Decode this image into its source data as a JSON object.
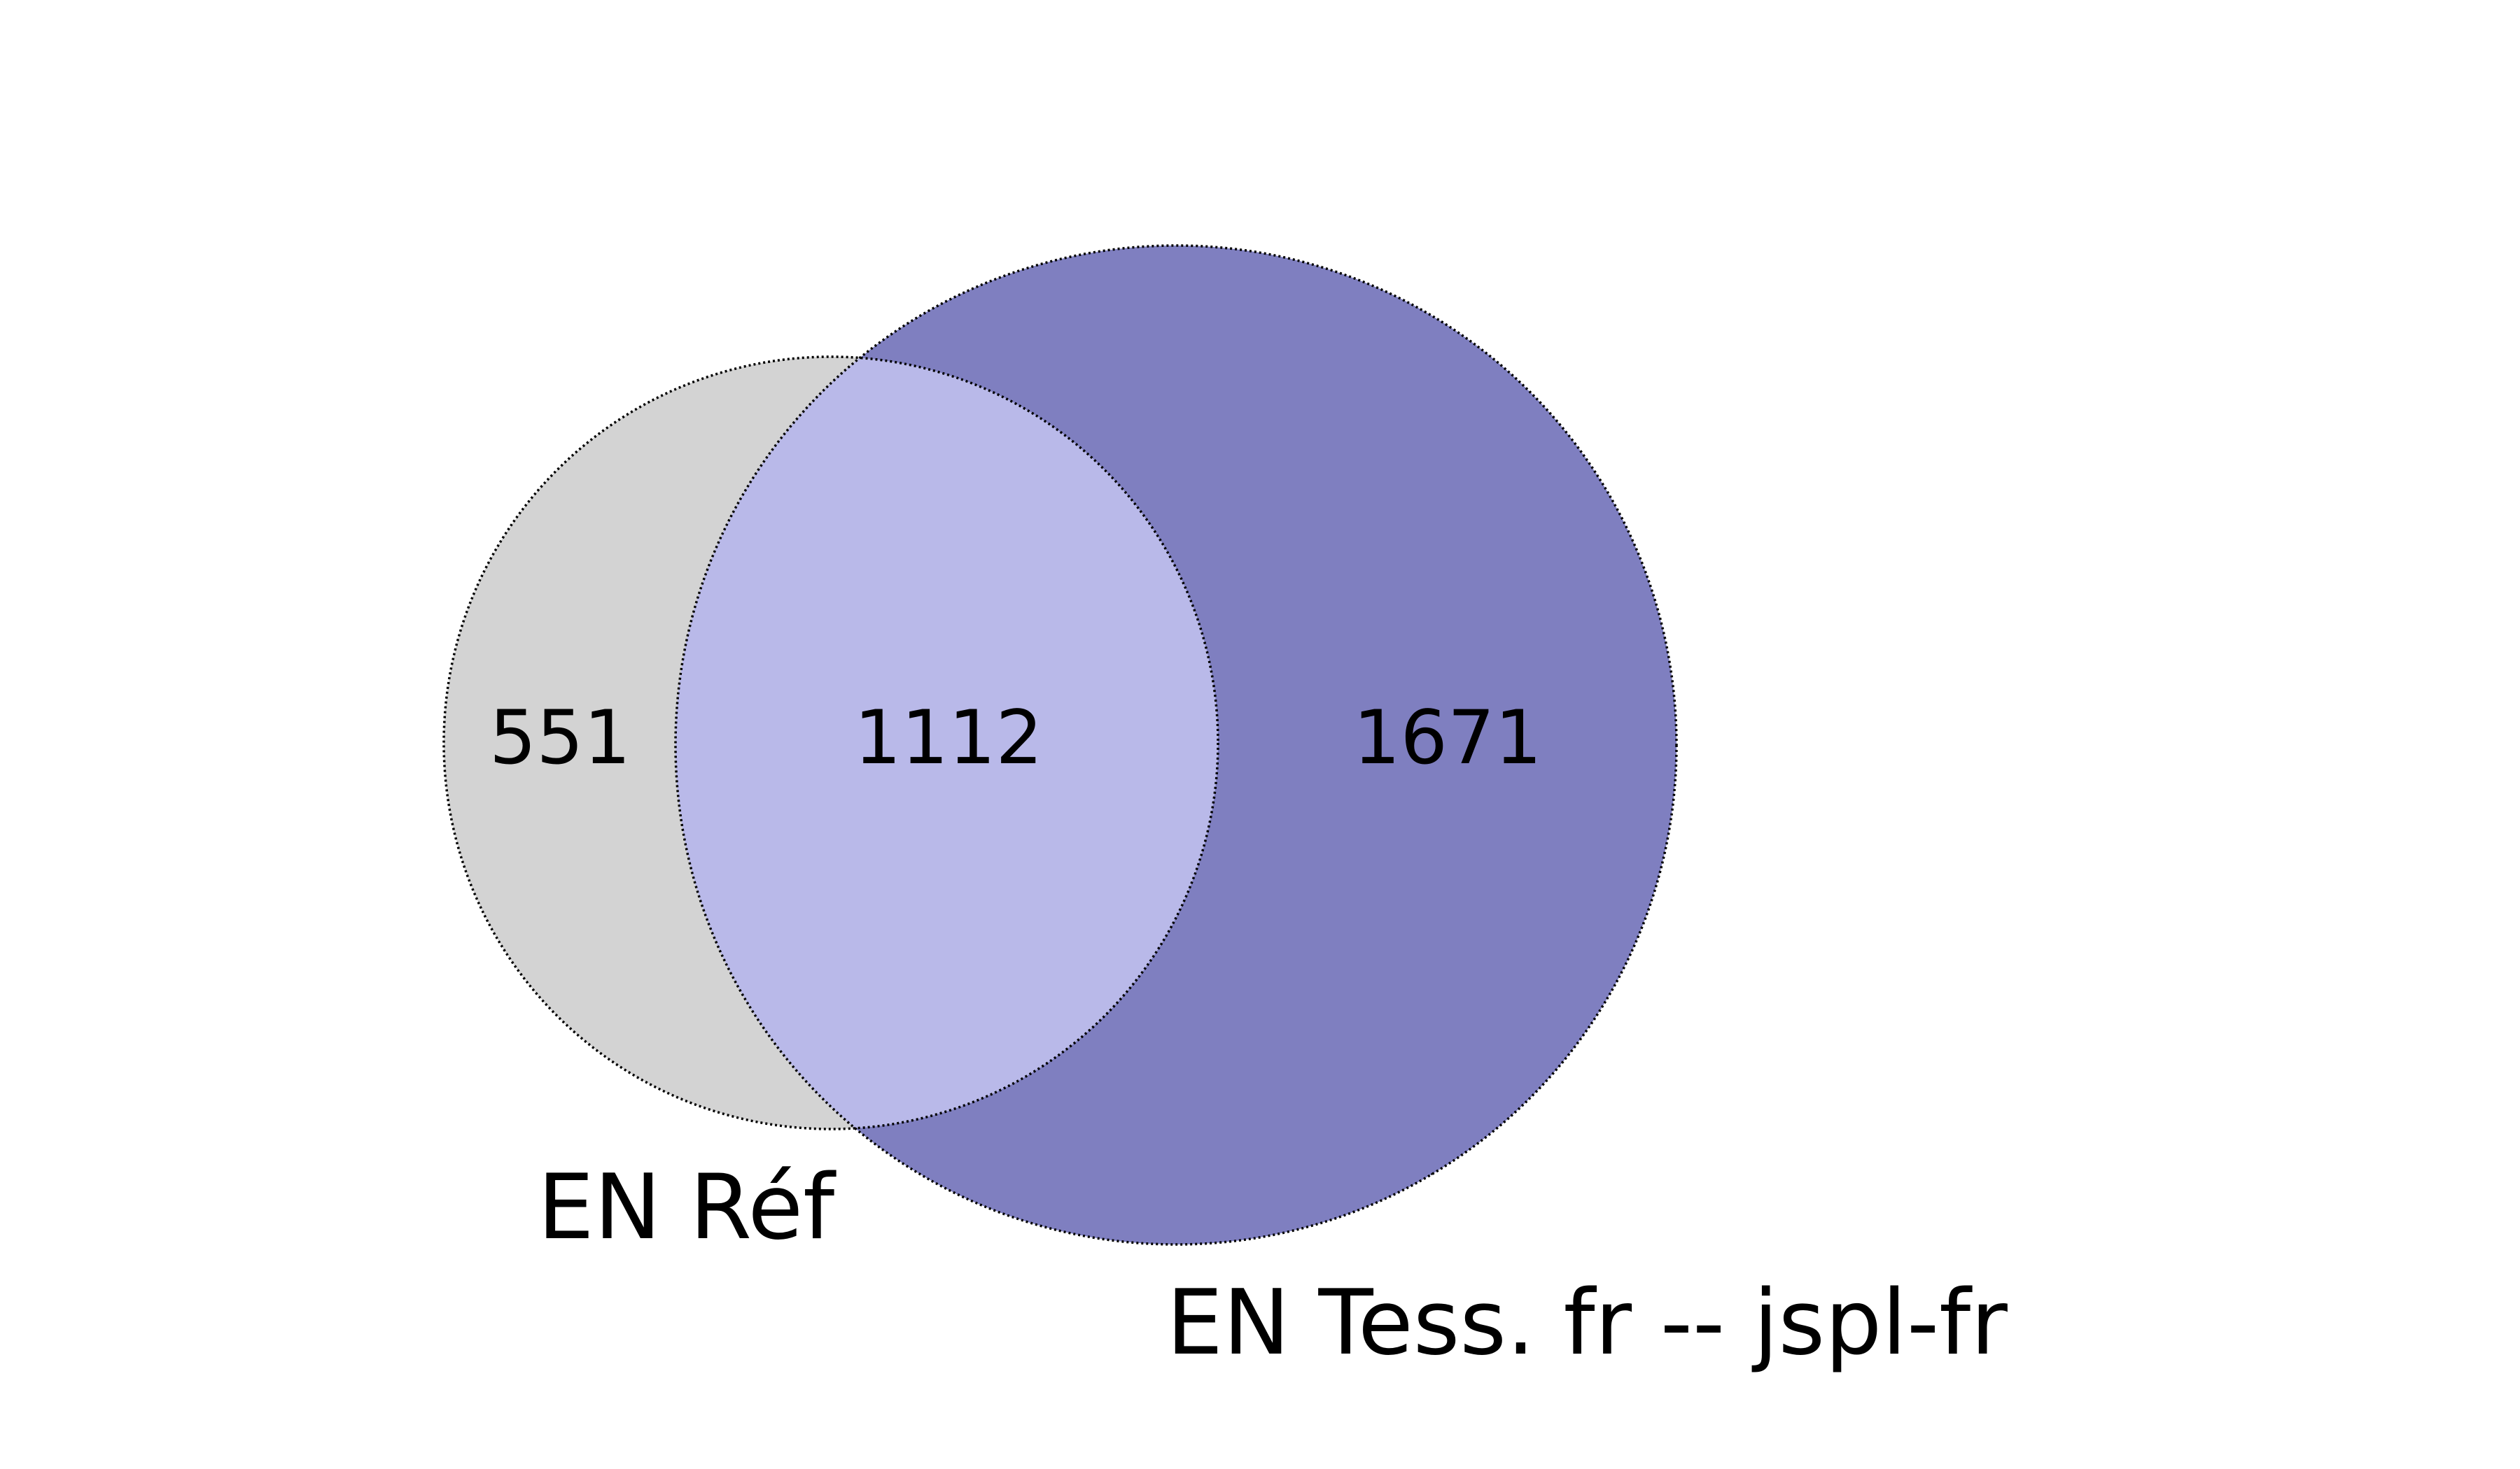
{
  "venn": {
    "sets": [
      {
        "label": "EN Réf",
        "color": "#d3d3d3"
      },
      {
        "label": "EN Tess. fr -- jspl-fr",
        "color": "#7f7fc0"
      }
    ],
    "intersection_color": "#b9b9e9",
    "regions": {
      "only_a": "551",
      "both": "1112",
      "only_b": "1671"
    }
  }
}
